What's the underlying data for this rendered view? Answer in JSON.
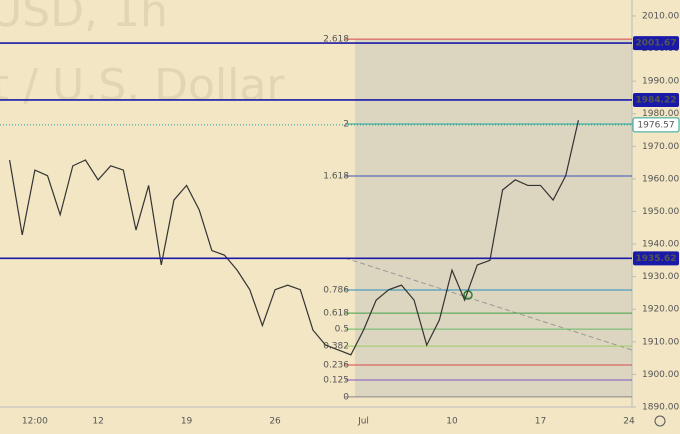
{
  "chart_data": {
    "type": "line",
    "watermark": [
      "USD, 1h",
      "t / U.S. Dollar"
    ],
    "categories": [
      null,
      null,
      "12:00",
      null,
      null,
      null,
      null,
      "12",
      null,
      null,
      null,
      null,
      null,
      null,
      "19",
      null,
      null,
      null,
      null,
      null,
      null,
      "26",
      null,
      null,
      null,
      null,
      null,
      null,
      "Jul",
      null,
      null,
      null,
      null,
      null,
      null,
      "10",
      null,
      null,
      null,
      null,
      null,
      null,
      "17",
      null,
      null,
      null,
      null,
      null,
      null,
      "24"
    ],
    "series": [
      {
        "color": "#333333",
        "values": [
          1965.8,
          1942.8,
          1962.7,
          1961,
          1949,
          1964,
          1965.8,
          1959.7,
          1964,
          1962.7,
          1944.3,
          1958,
          1933.6,
          1953.5,
          1958,
          1950.5,
          1938,
          1936.6,
          1932,
          1926,
          1915,
          1926,
          1927.4,
          1926,
          1913.6,
          1909,
          1907.5,
          1906,
          1913.6,
          1922.8,
          1926,
          1927.4,
          1922.8,
          1909,
          1916.7,
          1932,
          1922.8,
          1933.6,
          1935,
          1956.6,
          1959.7,
          1958,
          1958,
          1953.5,
          1961,
          1978,
          null,
          null,
          null,
          null
        ]
      }
    ],
    "ylim": [
      1890,
      2014.9
    ],
    "yticks": [
      {
        "value": 1890,
        "label": "1890.00"
      },
      {
        "value": 1900,
        "label": "1900.00"
      },
      {
        "value": 1910,
        "label": "1910.00"
      },
      {
        "value": 1920,
        "label": "1920.00"
      },
      {
        "value": 1930,
        "label": "1930.00"
      },
      {
        "value": 1940,
        "label": "1940.00"
      },
      {
        "value": 1950,
        "label": "1950.00"
      },
      {
        "value": 1960,
        "label": "1960.00"
      },
      {
        "value": 1970,
        "label": "1970.00"
      },
      {
        "value": 1980,
        "label": "1980.00"
      },
      {
        "value": 1990,
        "label": "1990.00"
      },
      {
        "value": 2000,
        "label": "2000.00"
      },
      {
        "value": 2010,
        "label": "2010.00"
      }
    ],
    "levels": [
      {
        "value": 2001.67,
        "color": "#1a1aa8"
      },
      {
        "value": 1984.22,
        "color": "#1a1aa8"
      },
      {
        "value": 1935.62,
        "color": "#1a1aa8"
      }
    ],
    "last_price": {
      "value": 1976.57,
      "color": "#26a69a"
    },
    "fib_levels": [
      {
        "label": "2.618",
        "value": 2002.9,
        "color": "#d84b4b"
      },
      {
        "label": "2",
        "value": 1976.85,
        "color": "#26a69a"
      },
      {
        "label": "1.618",
        "value": 1960.9,
        "color": "#3f51b5"
      },
      {
        "label": "0.786",
        "value": 1925.9,
        "color": "#2a8fbf"
      },
      {
        "label": "0.618",
        "value": 1918.8,
        "color": "#43a047"
      },
      {
        "label": "0.5",
        "value": 1913.9,
        "color": "#66bb6a"
      },
      {
        "label": "0.382",
        "value": 1908.7,
        "color": "#9ccc65"
      },
      {
        "label": "0.236",
        "value": 1902.9,
        "color": "#d84b4b"
      },
      {
        "label": "0.125",
        "value": 1898.3,
        "color": "#7e57c2"
      },
      {
        "label": "0",
        "value": 1893.1,
        "color": "#888888"
      }
    ]
  }
}
